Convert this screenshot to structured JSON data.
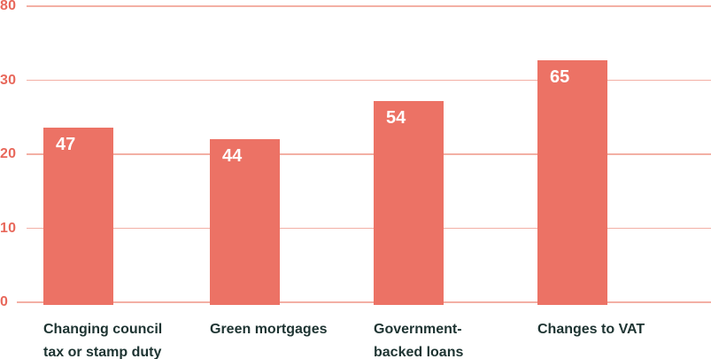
{
  "chart_data": {
    "type": "bar",
    "title": "",
    "categories": [
      "Changing council tax or stamp duty",
      "Green mortgages",
      "Government-backed loans",
      "Changes to VAT"
    ],
    "category_label_lines": [
      [
        "Changing council",
        "tax or stamp duty"
      ],
      [
        "Green mortgages"
      ],
      [
        "Government-",
        "backed loans"
      ],
      [
        "Changes to VAT"
      ]
    ],
    "values": [
      47,
      44,
      54,
      65
    ],
    "value_labels": [
      "47",
      "44",
      "54",
      "65"
    ],
    "xlabel": "",
    "ylabel": "",
    "y_axis": {
      "tick_labels_top_to_bottom": [
        "80",
        "30",
        "20",
        "10",
        "0"
      ],
      "ylim": [
        0,
        80
      ],
      "grid": "on"
    },
    "legend": "none",
    "colors": {
      "bar_fill": "#EC7265",
      "axis_tick_label": "#E8685B",
      "gridline": "#F3B0A5",
      "value_label": "#FFFFFF",
      "category_label": "#1E3432",
      "background": "#FFFFFF"
    }
  }
}
